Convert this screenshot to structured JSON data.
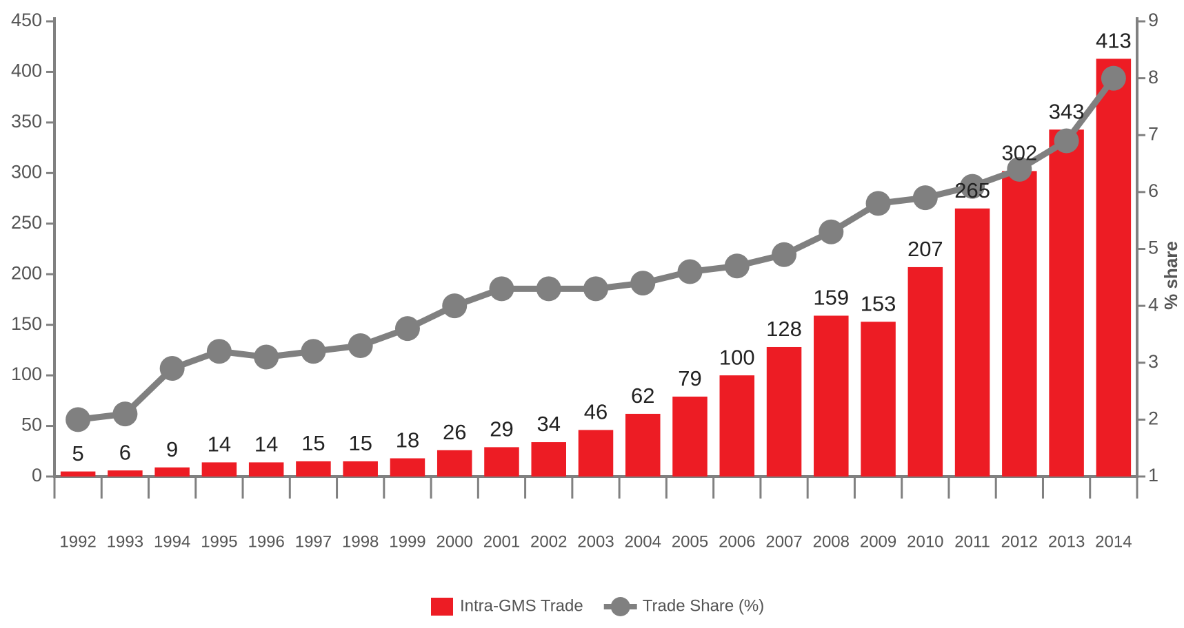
{
  "chart_data": {
    "type": "bar",
    "categories": [
      "1992",
      "1993",
      "1994",
      "1995",
      "1996",
      "1997",
      "1998",
      "1999",
      "2000",
      "2001",
      "2002",
      "2003",
      "2004",
      "2005",
      "2006",
      "2007",
      "2008",
      "2009",
      "2010",
      "2011",
      "2012",
      "2013",
      "2014"
    ],
    "series": [
      {
        "name": "Intra-GMS Trade",
        "type": "bar",
        "color": "#ed1c24",
        "values": [
          5,
          6,
          9,
          14,
          14,
          15,
          15,
          18,
          26,
          29,
          34,
          46,
          62,
          79,
          100,
          128,
          159,
          153,
          207,
          265,
          302,
          343,
          413
        ]
      },
      {
        "name": "Trade Share (%)",
        "type": "line",
        "axis": "y2",
        "color": "#808080",
        "values": [
          2.0,
          2.1,
          2.9,
          3.2,
          3.1,
          3.2,
          3.3,
          3.6,
          4.0,
          4.3,
          4.3,
          4.3,
          4.4,
          4.6,
          4.7,
          4.9,
          5.3,
          5.8,
          5.9,
          6.1,
          6.4,
          6.9,
          8.0
        ]
      }
    ],
    "ylim": [
      0,
      450
    ],
    "yticks": [
      0,
      50,
      100,
      150,
      200,
      250,
      300,
      350,
      400,
      450
    ],
    "y2lim": [
      1,
      9
    ],
    "y2ticks": [
      1,
      2,
      3,
      4,
      5,
      6,
      7,
      8,
      9
    ],
    "y2label": "% share",
    "legend": "bottom"
  }
}
